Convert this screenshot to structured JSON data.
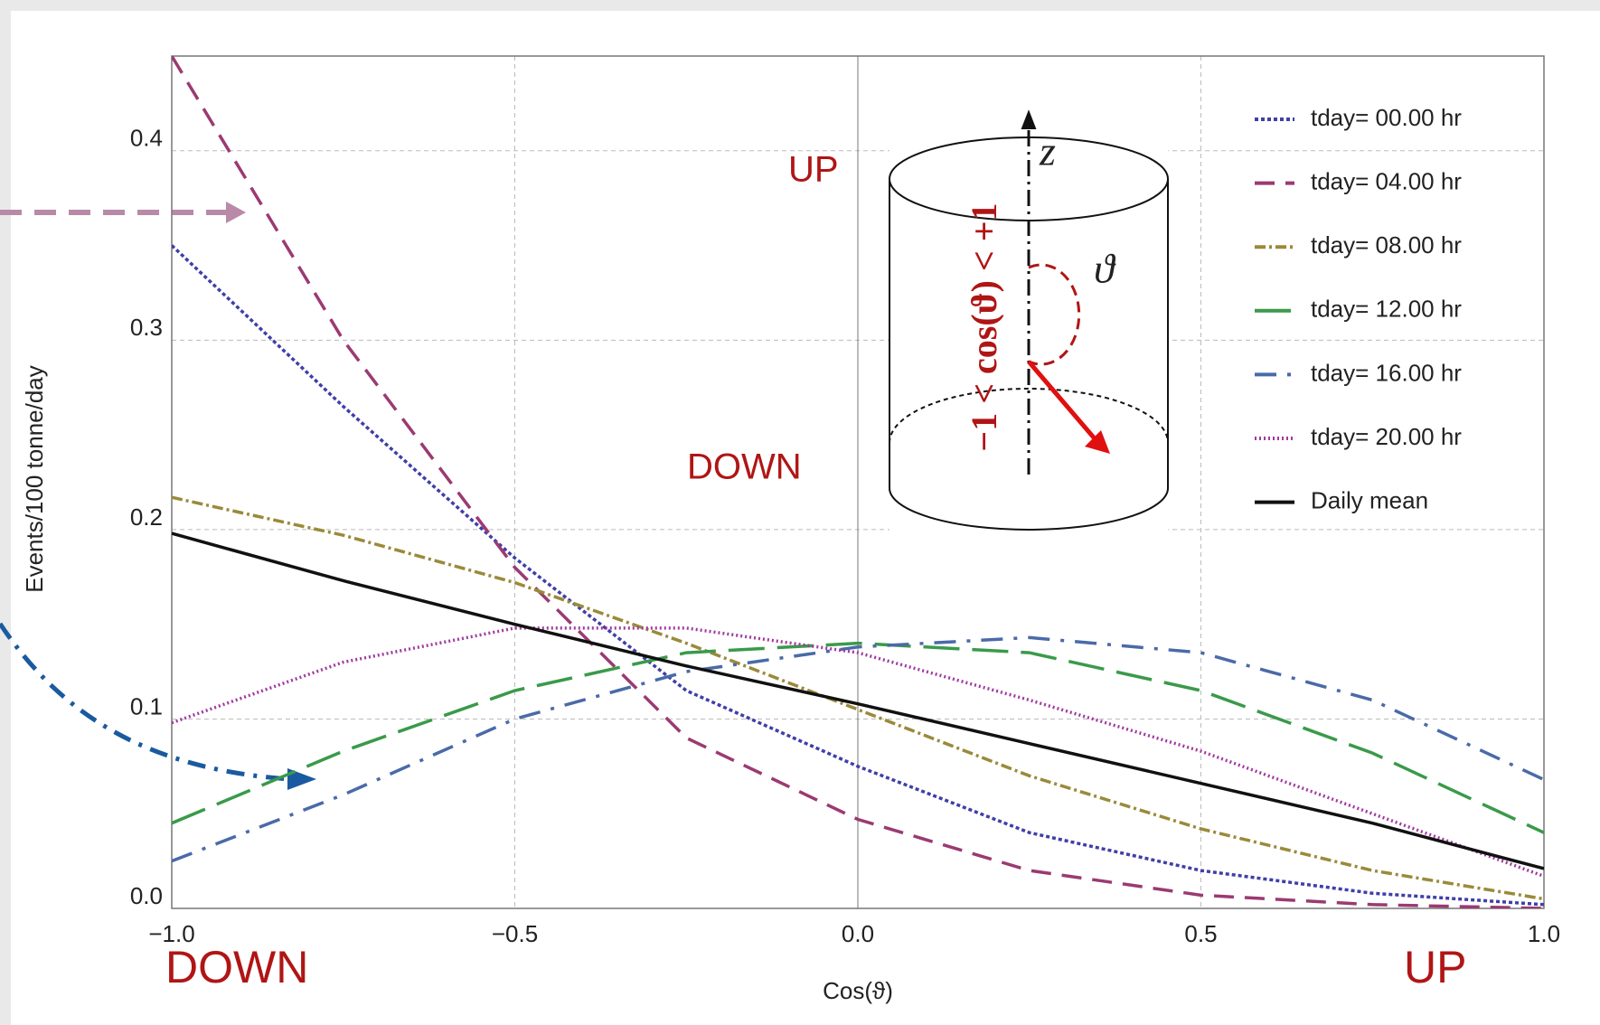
{
  "chart_data": {
    "type": "line",
    "y_label": "Events/100 tonne/day",
    "x_label": "Cos(ϑ)",
    "x": [
      -1,
      -0.75,
      -0.5,
      -0.25,
      0,
      0.25,
      0.5,
      0.75,
      1
    ],
    "series": [
      {
        "name": "tday= 00.00 hr",
        "color": "#3f3fa8",
        "dash": "4 3",
        "values": [
          0.35,
          0.265,
          0.185,
          0.115,
          0.075,
          0.04,
          0.02,
          0.008,
          0.002
        ]
      },
      {
        "name": "tday= 04.00 hr",
        "color": "#9b3a72",
        "dash": "22 12",
        "values": [
          0.45,
          0.3,
          0.18,
          0.09,
          0.047,
          0.02,
          0.007,
          0.002,
          0
        ]
      },
      {
        "name": "tday= 08.00 hr",
        "color": "#9a8a3a",
        "dash": "12 4 3 4",
        "values": [
          0.217,
          0.197,
          0.172,
          0.14,
          0.105,
          0.07,
          0.042,
          0.02,
          0.005
        ]
      },
      {
        "name": "tday= 12.00 hr",
        "color": "#3a9a4a",
        "dash": "40 14",
        "values": [
          0.045,
          0.083,
          0.115,
          0.135,
          0.14,
          0.135,
          0.115,
          0.082,
          0.04
        ]
      },
      {
        "name": "tday= 16.00 hr",
        "color": "#4a6aa8",
        "dash": "24 12 4 12",
        "values": [
          0.025,
          0.06,
          0.1,
          0.125,
          0.138,
          0.143,
          0.135,
          0.11,
          0.068
        ]
      },
      {
        "name": "tday= 20.00 hr",
        "color": "#a03aa0",
        "dash": "2 3",
        "values": [
          0.098,
          0.13,
          0.148,
          0.148,
          0.135,
          0.11,
          0.083,
          0.05,
          0.017
        ]
      },
      {
        "name": "Daily mean",
        "color": "#111111",
        "dash": "",
        "values": [
          0.198,
          0.173,
          0.15,
          0.128,
          0.108,
          0.087,
          0.066,
          0.045,
          0.021
        ]
      }
    ],
    "xlim": [
      -1,
      1
    ],
    "ylim": [
      0,
      0.45
    ],
    "xticks": [
      {
        "value": -1,
        "label": "−1.0"
      },
      {
        "value": -0.5,
        "label": "−0.5"
      },
      {
        "value": 0,
        "label": "0.0"
      },
      0.5,
      {
        "value": 1,
        "label": "1.0"
      }
    ],
    "yticks": [
      {
        "value": 0,
        "label": "0.0"
      },
      0.1,
      0.2,
      0.3,
      0.4
    ],
    "grid": true,
    "legend": "top-right",
    "annotations": [
      "UP",
      "DOWN",
      "DOWN",
      "UP",
      "z",
      "ϑ",
      "−1 < cos(ϑ) < +1"
    ]
  }
}
